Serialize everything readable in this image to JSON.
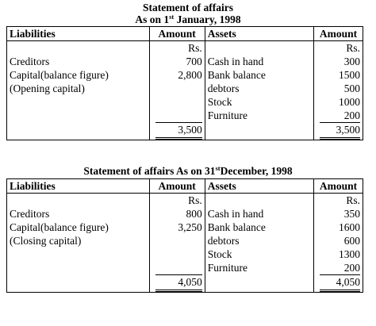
{
  "statement1": {
    "title_line1": "Statement  of affairs",
    "title_line2_prefix": "As on 1",
    "title_line2_sup": "st",
    "title_line2_suffix": " January, 1998",
    "headers": {
      "liabilities": "Liabilities",
      "amount": "Amount",
      "assets": "Assets",
      "amount2": "Amount"
    },
    "currency_l": "Rs.",
    "currency_r": "Rs.",
    "liabilities": [
      {
        "label": "Creditors",
        "amount": "700"
      },
      {
        "label": "Capital(balance figure)",
        "amount": "2,800"
      },
      {
        "label": "(Opening capital)",
        "amount": ""
      }
    ],
    "assets": [
      {
        "label": "Cash in hand",
        "amount": "300"
      },
      {
        "label": "Bank balance",
        "amount": "1500"
      },
      {
        "label": "debtors",
        "amount": "500"
      },
      {
        "label": "Stock",
        "amount": "1000"
      },
      {
        "label": "Furniture",
        "amount": "200"
      }
    ],
    "total_liabilities": "3,500",
    "total_assets": "3,500"
  },
  "statement2": {
    "title_prefix": "Statement of affairs As on 31",
    "title_sup": "st",
    "title_suffix": "December, 1998",
    "headers": {
      "liabilities": "Liabilities",
      "amount": "Amount",
      "assets": "Assets",
      "amount2": "Amount"
    },
    "currency_l": "Rs.",
    "currency_r": "Rs.",
    "liabilities": [
      {
        "label": "Creditors",
        "amount": "800"
      },
      {
        "label": "Capital(balance figure)",
        "amount": "3,250"
      },
      {
        "label": "(Closing capital)",
        "amount": ""
      }
    ],
    "assets": [
      {
        "label": "Cash in hand",
        "amount": "350"
      },
      {
        "label": "Bank balance",
        "amount": "1600"
      },
      {
        "label": "debtors",
        "amount": "600"
      },
      {
        "label": "Stock",
        "amount": "1300"
      },
      {
        "label": "Furniture",
        "amount": "200"
      }
    ],
    "total_liabilities": "4,050",
    "total_assets": "4,050"
  }
}
